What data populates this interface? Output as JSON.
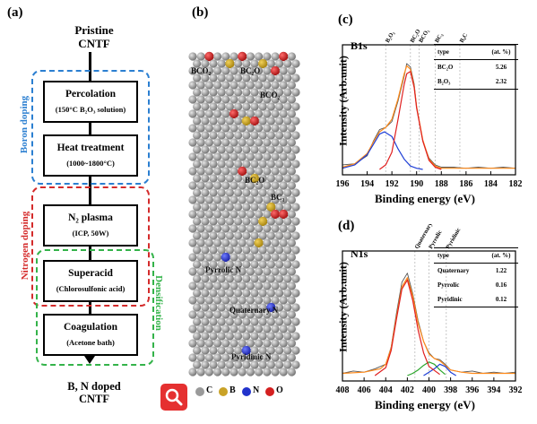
{
  "panel_a": {
    "label": "(a)",
    "top_title_1": "Pristine",
    "top_title_2": "CNTF",
    "steps": [
      {
        "title": "Percolation",
        "sub": "(150°C B₂O₃ solution)"
      },
      {
        "title": "Heat treatment",
        "sub": "(1000~1800°C)"
      },
      {
        "title": "N₂ plasma",
        "sub": "(ICP, 50W)"
      },
      {
        "title": "Superacid",
        "sub": "(Chlorosulfonic acid)"
      },
      {
        "title": "Coagulation",
        "sub": "(Acetone bath)"
      }
    ],
    "boron_label": "Boron doping",
    "nitrogen_label": "Nitrogen doping",
    "densification_label": "Densification",
    "bottom_title_1": "B, N doped",
    "bottom_title_2": "CNTF",
    "colors": {
      "boron": "#2b7fd1",
      "nitrogen": "#d42b2b",
      "densification": "#34b34a"
    }
  },
  "panel_b": {
    "label": "(b)",
    "site_labels": [
      "BCO₂",
      "BC₂O",
      "BCO₂",
      "BC₂O",
      "BC₃",
      "Pyrrolic N",
      "Quaternary N",
      "Pyridinic N"
    ],
    "legend": [
      {
        "symbol": "C",
        "color": "#9a9a9a"
      },
      {
        "symbol": "B",
        "color": "#c9a227"
      },
      {
        "symbol": "N",
        "color": "#2233cc"
      },
      {
        "symbol": "O",
        "color": "#d42020"
      }
    ],
    "zoom_icon": "magnifier-icon"
  },
  "panel_c": {
    "label": "(c)",
    "name": "B1s",
    "ylabel": "Intensity (Arb.unit)",
    "xlabel": "Binding energy (eV)",
    "ref_labels": [
      "B₂O₃",
      "BC₂O",
      "BCO₂",
      "BC₃",
      "B₄C"
    ],
    "table_header": [
      "type",
      "(at. %)"
    ],
    "table_rows": [
      [
        "BC₂O",
        "5.26"
      ],
      [
        "B₂O₃",
        "2.32"
      ]
    ]
  },
  "panel_d": {
    "label": "(d)",
    "name": "N1s",
    "ylabel": "Intensity (Arb.unit)",
    "xlabel": "Binding energy (eV)",
    "ref_labels": [
      "Quaternary",
      "Pyrrolic",
      "Pyridinic"
    ],
    "table_header": [
      "type",
      "(at. %)"
    ],
    "table_rows": [
      [
        "Quaternary",
        "1.22"
      ],
      [
        "Pyrrolic",
        "0.16"
      ],
      [
        "Pyridinic",
        "0.12"
      ]
    ]
  },
  "chart_data": [
    {
      "type": "line",
      "title": "B1s",
      "xlabel": "Binding energy (eV)",
      "ylabel": "Intensity (Arb.unit)",
      "xlim": [
        196,
        182
      ],
      "x_ticks": [
        "196",
        "194",
        "192",
        "190",
        "188",
        "186",
        "184",
        "182"
      ],
      "series": [
        {
          "color": "#555555",
          "role": "raw",
          "x": [
            196,
            195,
            194,
            193.5,
            193,
            192.5,
            192,
            191.5,
            191,
            190.8,
            190.5,
            190.2,
            190,
            189.5,
            189,
            188.5,
            188,
            187,
            186,
            185,
            184,
            183,
            182
          ],
          "y": [
            0.04,
            0.05,
            0.12,
            0.25,
            0.35,
            0.37,
            0.42,
            0.6,
            0.82,
            0.93,
            0.9,
            0.75,
            0.55,
            0.25,
            0.1,
            0.04,
            0.02,
            0.02,
            0.01,
            0.02,
            0.01,
            0.02,
            0.01
          ]
        },
        {
          "color": "#ff8a1a",
          "role": "envelope",
          "x": [
            196,
            195,
            194,
            193.5,
            193,
            192.5,
            192,
            191.5,
            191,
            190.8,
            190.5,
            190.2,
            190,
            189.5,
            189,
            188.5,
            188,
            187,
            186,
            184,
            182
          ],
          "y": [
            0.02,
            0.05,
            0.14,
            0.24,
            0.33,
            0.37,
            0.44,
            0.62,
            0.84,
            0.91,
            0.88,
            0.73,
            0.55,
            0.26,
            0.09,
            0.03,
            0.01,
            0.01,
            0.01,
            0.01,
            0.01
          ]
        },
        {
          "color": "#1f3fd6",
          "role": "component",
          "x": [
            196,
            195,
            194,
            193.5,
            193,
            192.6,
            192,
            191.5,
            191,
            190.5,
            190,
            189.5
          ],
          "y": [
            0.01,
            0.04,
            0.13,
            0.22,
            0.31,
            0.33,
            0.29,
            0.18,
            0.09,
            0.03,
            0.01,
            0.0
          ]
        },
        {
          "color": "#e02020",
          "role": "component",
          "x": [
            193,
            192.5,
            192,
            191.5,
            191,
            190.8,
            190.5,
            190.2,
            190,
            189.5,
            189,
            188.5,
            188
          ],
          "y": [
            0.0,
            0.04,
            0.15,
            0.44,
            0.75,
            0.84,
            0.86,
            0.72,
            0.54,
            0.25,
            0.08,
            0.02,
            0.0
          ]
        }
      ],
      "ref_lines_x": [
        192.5,
        190.5,
        189.8,
        188.5,
        186.5
      ]
    },
    {
      "type": "line",
      "title": "N1s",
      "xlabel": "Binding energy (eV)",
      "ylabel": "Intensity (Arb.unit)",
      "xlim": [
        408,
        392
      ],
      "x_ticks": [
        "408",
        "406",
        "404",
        "402",
        "400",
        "398",
        "396",
        "394",
        "392"
      ],
      "series": [
        {
          "color": "#555555",
          "role": "raw",
          "x": [
            408,
            407,
            406,
            405,
            404,
            403.5,
            403,
            402.5,
            402,
            401.5,
            401,
            400.5,
            400,
            399.5,
            399,
            398.5,
            398,
            397,
            396,
            395,
            394,
            393,
            392
          ],
          "y": [
            0.02,
            0.04,
            0.03,
            0.06,
            0.1,
            0.25,
            0.55,
            0.82,
            0.9,
            0.72,
            0.48,
            0.3,
            0.2,
            0.15,
            0.14,
            0.1,
            0.05,
            0.03,
            0.04,
            0.02,
            0.03,
            0.02,
            0.03
          ]
        },
        {
          "color": "#ff8a1a",
          "role": "envelope",
          "x": [
            408,
            406,
            404.5,
            404,
            403.5,
            403,
            402.5,
            402,
            401.5,
            401,
            400.5,
            400,
            399.5,
            399,
            398.5,
            398,
            397,
            396,
            392
          ],
          "y": [
            0.02,
            0.03,
            0.06,
            0.1,
            0.24,
            0.52,
            0.78,
            0.86,
            0.7,
            0.46,
            0.3,
            0.19,
            0.15,
            0.13,
            0.09,
            0.05,
            0.03,
            0.02,
            0.02
          ]
        },
        {
          "color": "#2aa52a",
          "role": "component",
          "x": [
            402,
            401.5,
            401,
            400.5,
            400,
            399.5,
            399,
            398.5
          ],
          "y": [
            0.0,
            0.02,
            0.05,
            0.09,
            0.12,
            0.1,
            0.05,
            0.01
          ]
        },
        {
          "color": "#1f3fd6",
          "role": "component",
          "x": [
            400.5,
            400,
            399.5,
            399,
            398.5,
            398,
            397.5
          ],
          "y": [
            0.0,
            0.03,
            0.06,
            0.1,
            0.08,
            0.03,
            0.0
          ]
        },
        {
          "color": "#e02020",
          "role": "component",
          "x": [
            405,
            404,
            403.5,
            403,
            402.5,
            402,
            401.5,
            401,
            400.5,
            400,
            399
          ],
          "y": [
            0.0,
            0.07,
            0.22,
            0.5,
            0.76,
            0.84,
            0.66,
            0.4,
            0.2,
            0.08,
            0.01
          ]
        }
      ],
      "ref_lines_x": [
        401.3,
        400.0,
        398.4
      ]
    }
  ]
}
